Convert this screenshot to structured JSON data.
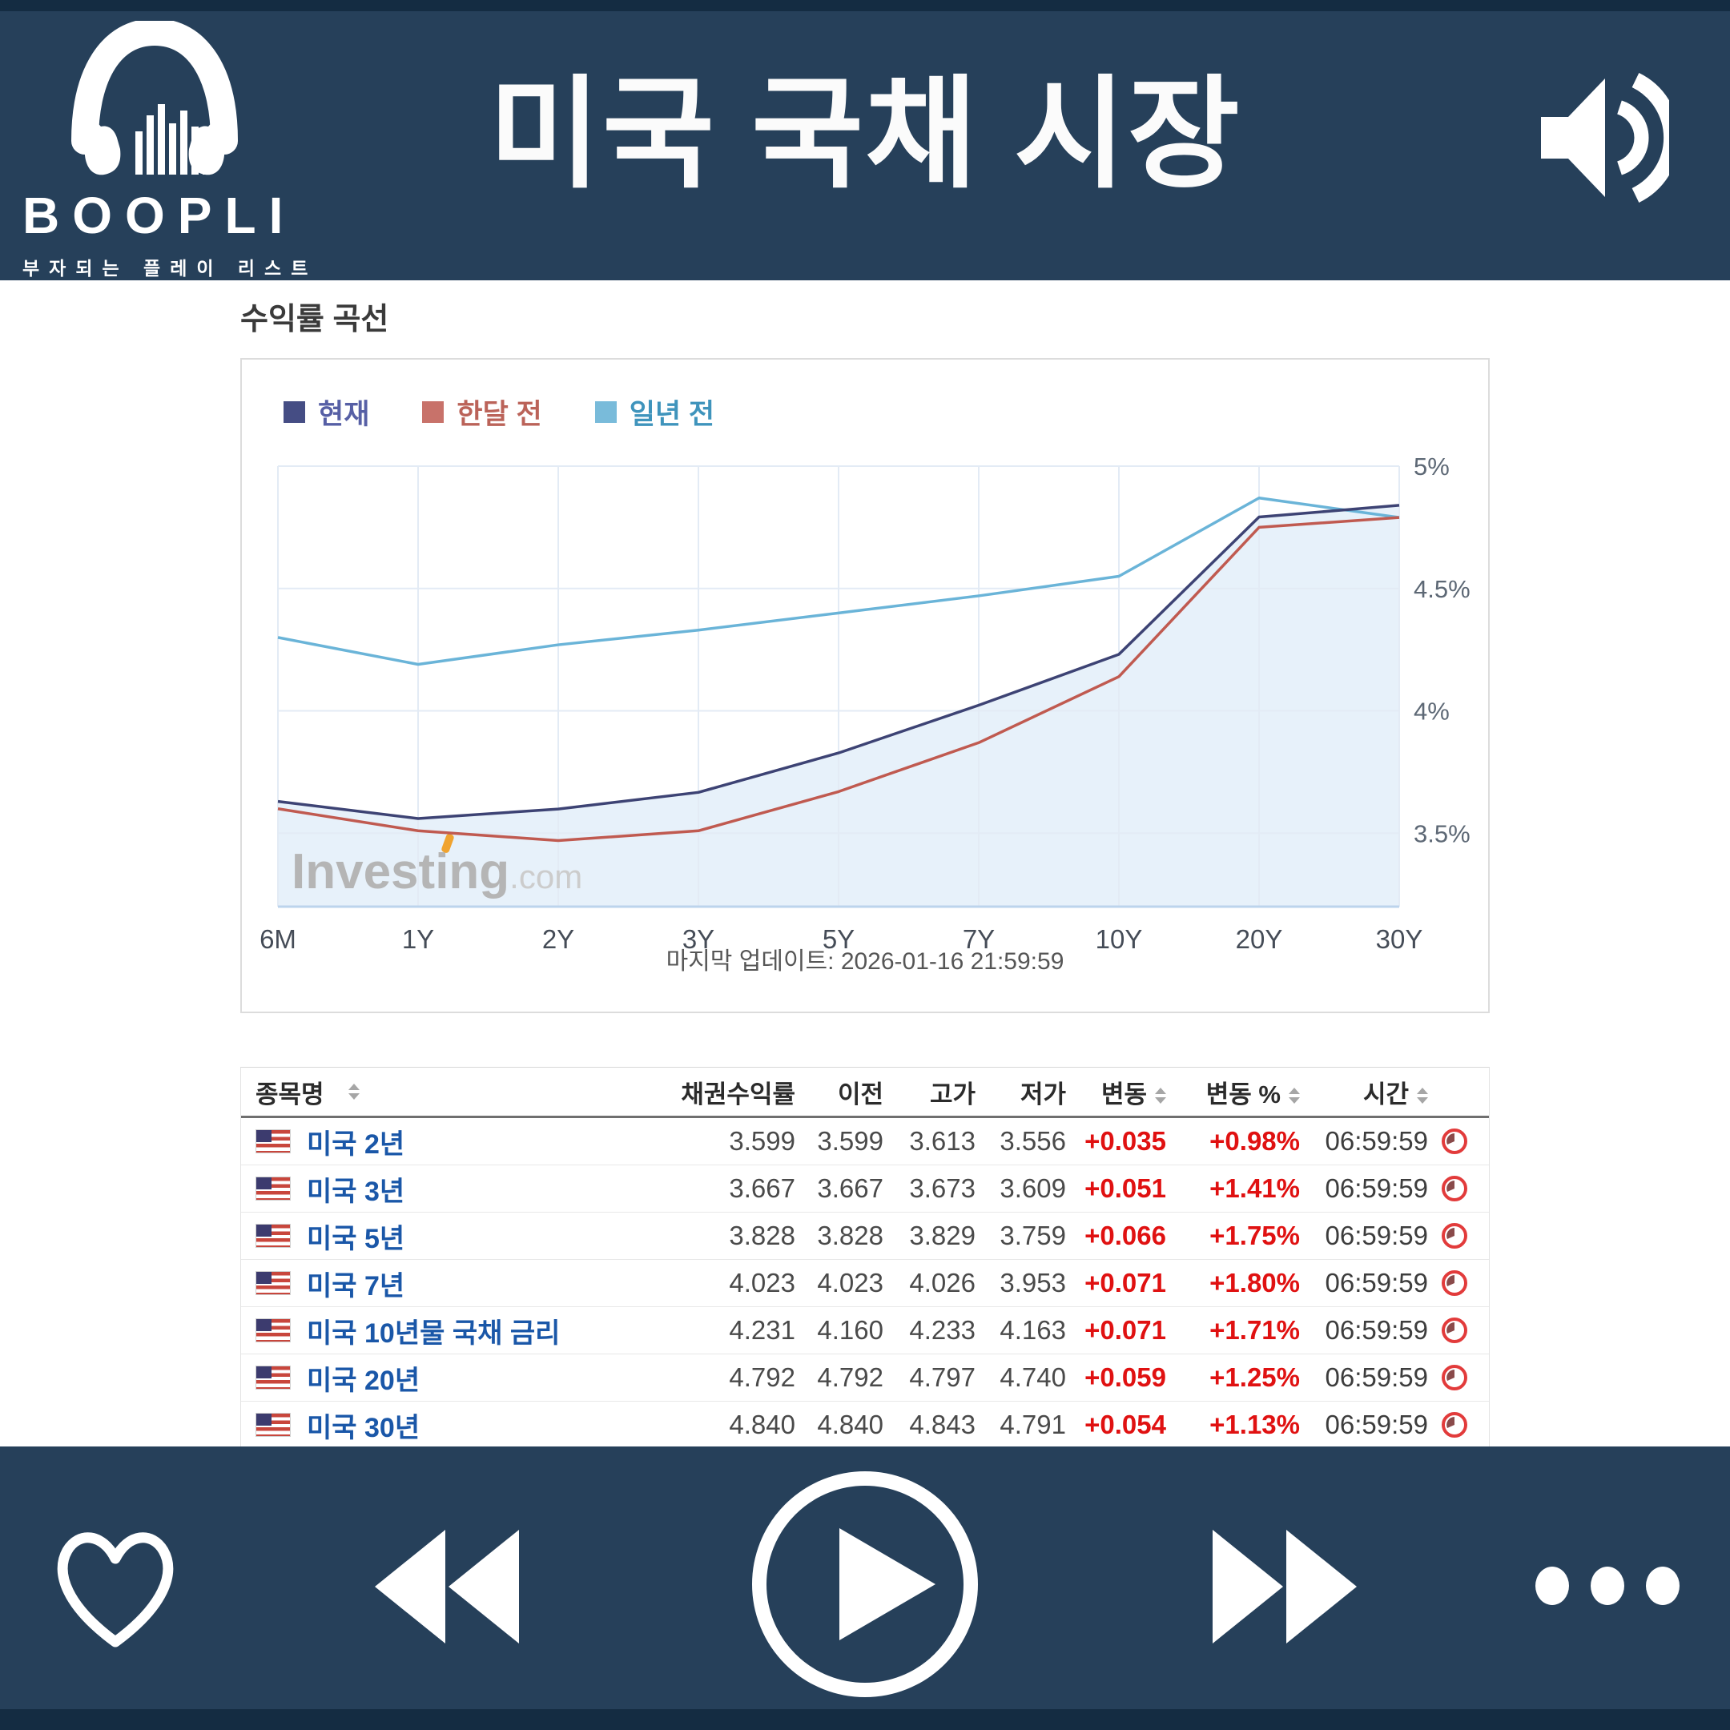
{
  "header": {
    "brand": "BOOPLI",
    "brand_subtitle": "부자되는 플레이 리스트",
    "title": "미국 국채 시장"
  },
  "section": {
    "heading": "수익률 곡선",
    "watermark": "Investing",
    "watermark_suffix": ".com",
    "last_update": "마지막 업데이트: 2026-01-16 21:59:59"
  },
  "chart_data": {
    "type": "line",
    "title": "수익률 곡선",
    "categories": [
      "6M",
      "1Y",
      "2Y",
      "3Y",
      "5Y",
      "7Y",
      "10Y",
      "20Y",
      "30Y"
    ],
    "series": [
      {
        "name": "현재",
        "color": "#3d4374",
        "text_color": "#565fa5",
        "swatch_color": "#454d84",
        "values": [
          3.63,
          3.56,
          3.599,
          3.667,
          3.828,
          4.023,
          4.231,
          4.792,
          4.84
        ]
      },
      {
        "name": "한달 전",
        "color": "#c05a50",
        "text_color": "#bb6359",
        "swatch_color": "#c8726a",
        "values": [
          3.6,
          3.51,
          3.47,
          3.51,
          3.67,
          3.87,
          4.14,
          4.75,
          4.79
        ]
      },
      {
        "name": "일년 전",
        "color": "#6ab4d8",
        "text_color": "#3f94bc",
        "swatch_color": "#79bbda",
        "values": [
          4.3,
          4.19,
          4.27,
          4.33,
          4.4,
          4.47,
          4.55,
          4.87,
          4.79
        ]
      }
    ],
    "ylim": [
      3.2,
      5.0
    ],
    "yticks": [
      5.0,
      4.5,
      4.0,
      3.5
    ],
    "ytick_labels": [
      "5%",
      "4.5%",
      "4%",
      "3.5%"
    ],
    "grid": true,
    "legend_position": "top-left",
    "fill_series": "현재",
    "fill_color": "#e7f1fa",
    "xlabel": "",
    "ylabel": ""
  },
  "table": {
    "headers": [
      {
        "label": "종목명",
        "sortable": true
      },
      {
        "label": "채권수익률",
        "sortable": false
      },
      {
        "label": "이전",
        "sortable": false
      },
      {
        "label": "고가",
        "sortable": false
      },
      {
        "label": "저가",
        "sortable": false
      },
      {
        "label": "변동",
        "sortable": true
      },
      {
        "label": "변동 %",
        "sortable": true
      },
      {
        "label": "시간",
        "sortable": true
      }
    ],
    "rows": [
      {
        "name": "미국 2년",
        "yield": "3.599",
        "prev": "3.599",
        "high": "3.613",
        "low": "3.556",
        "change": "+0.035",
        "change_pct": "+0.98%",
        "time": "06:59:59"
      },
      {
        "name": "미국 3년",
        "yield": "3.667",
        "prev": "3.667",
        "high": "3.673",
        "low": "3.609",
        "change": "+0.051",
        "change_pct": "+1.41%",
        "time": "06:59:59"
      },
      {
        "name": "미국 5년",
        "yield": "3.828",
        "prev": "3.828",
        "high": "3.829",
        "low": "3.759",
        "change": "+0.066",
        "change_pct": "+1.75%",
        "time": "06:59:59"
      },
      {
        "name": "미국 7년",
        "yield": "4.023",
        "prev": "4.023",
        "high": "4.026",
        "low": "3.953",
        "change": "+0.071",
        "change_pct": "+1.80%",
        "time": "06:59:59"
      },
      {
        "name": "미국 10년물 국채 금리",
        "yield": "4.231",
        "prev": "4.160",
        "high": "4.233",
        "low": "4.163",
        "change": "+0.071",
        "change_pct": "+1.71%",
        "time": "06:59:59"
      },
      {
        "name": "미국 20년",
        "yield": "4.792",
        "prev": "4.792",
        "high": "4.797",
        "low": "4.740",
        "change": "+0.059",
        "change_pct": "+1.25%",
        "time": "06:59:59"
      },
      {
        "name": "미국 30년",
        "yield": "4.840",
        "prev": "4.840",
        "high": "4.843",
        "low": "4.791",
        "change": "+0.054",
        "change_pct": "+1.13%",
        "time": "06:59:59"
      }
    ],
    "positive_color": "#e01111",
    "link_color": "#1a57a8"
  },
  "player": {
    "icons": [
      "heart-icon",
      "rewind-icon",
      "play-icon",
      "fast-forward-icon",
      "more-icon"
    ],
    "background": "#26405a"
  }
}
